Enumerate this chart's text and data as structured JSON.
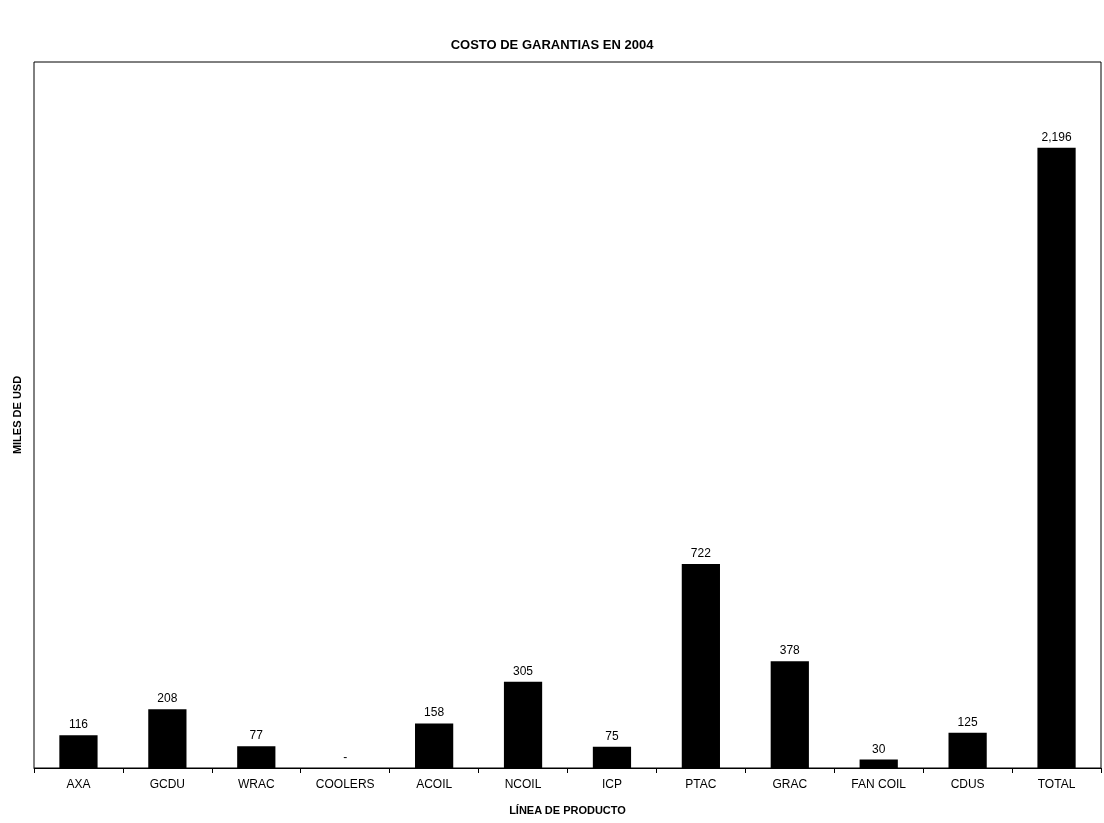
{
  "chart_data": {
    "type": "bar",
    "title": "COSTO DE GARANTIAS EN 2004",
    "xlabel": "LÍNEA DE PRODUCTO",
    "ylabel": "MILES DE USD",
    "categories": [
      "AXA",
      "GCDU",
      "WRAC",
      "COOLERS",
      "ACOIL",
      "NCOIL",
      "ICP",
      "PTAC",
      "GRAC",
      "FAN COIL",
      "CDUS",
      "TOTAL"
    ],
    "values": [
      116,
      208,
      77,
      0,
      158,
      305,
      75,
      722,
      378,
      30,
      125,
      2196
    ],
    "value_labels": [
      "116",
      "208",
      "77",
      "-",
      "158",
      "305",
      "75",
      "722",
      "378",
      "30",
      "125",
      "2,196"
    ],
    "color": "#000000",
    "ylim": [
      0,
      2500
    ],
    "tick_labels": "x",
    "grid": false
  }
}
